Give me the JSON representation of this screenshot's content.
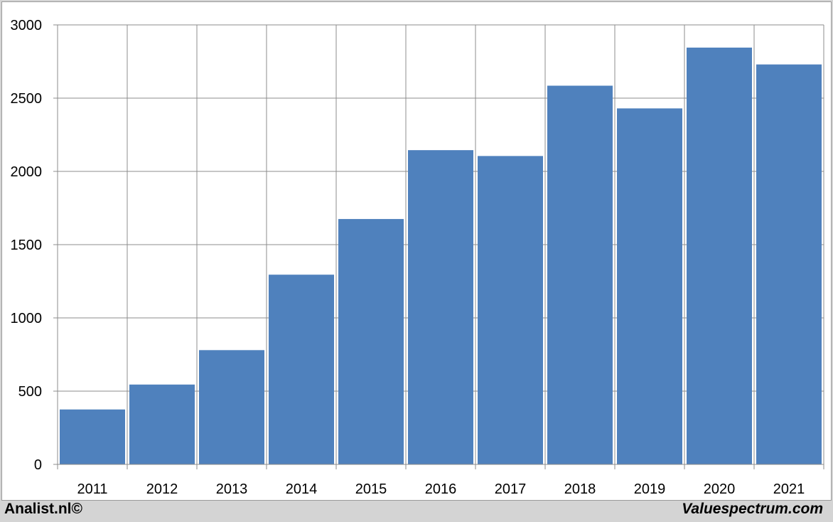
{
  "chart_data": {
    "type": "bar",
    "categories": [
      "2011",
      "2012",
      "2013",
      "2014",
      "2015",
      "2016",
      "2017",
      "2018",
      "2019",
      "2020",
      "2021"
    ],
    "values": [
      375,
      545,
      780,
      1295,
      1675,
      2145,
      2105,
      2585,
      2430,
      2845,
      2730
    ],
    "ylim": [
      0,
      3000
    ],
    "yticks": [
      0,
      500,
      1000,
      1500,
      2000,
      2500,
      3000
    ],
    "grid": true,
    "bar_color": "#4f81bd",
    "title": "",
    "xlabel": "",
    "ylabel": ""
  },
  "footer": {
    "left": "Analist.nl©",
    "right": "Valuespectrum.com"
  }
}
